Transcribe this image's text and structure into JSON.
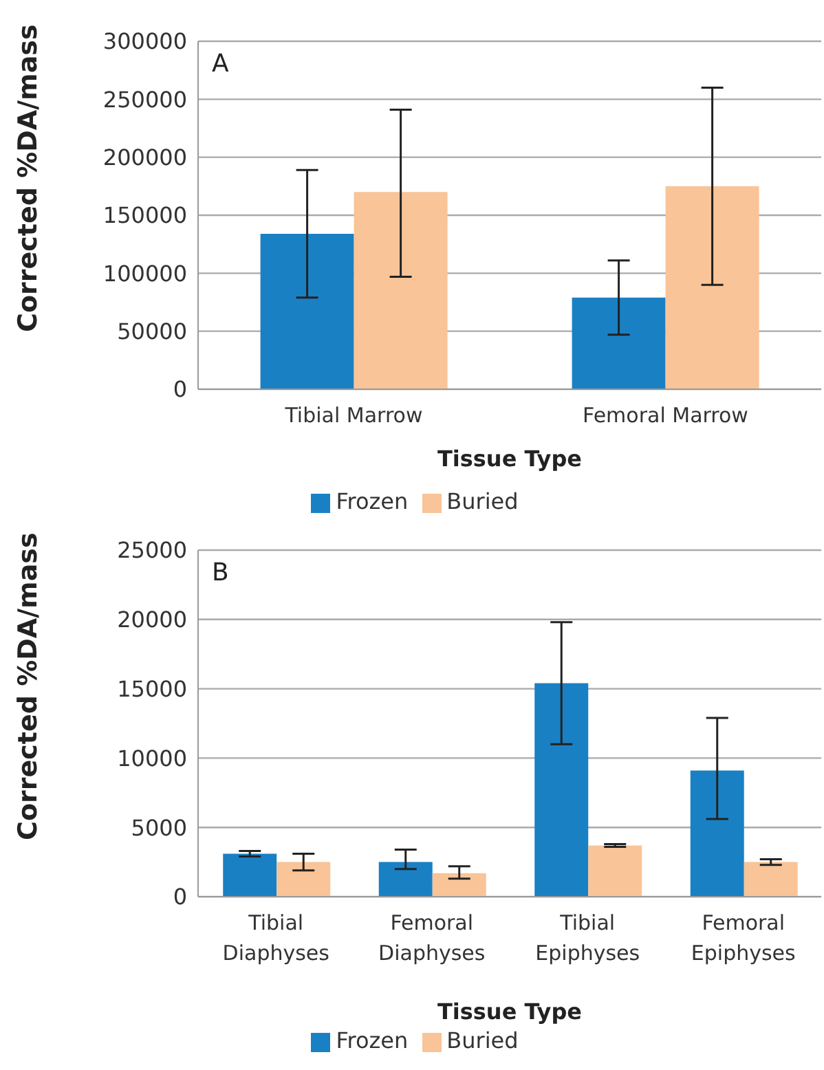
{
  "chart_data": [
    {
      "type": "bar",
      "annotations": [
        "A"
      ],
      "xlabel": "Tissue Type",
      "ylabel": "Corrected %DA/mass",
      "categories": [
        "Tibial Marrow",
        "Femoral Marrow"
      ],
      "series": [
        {
          "name": "Frozen",
          "color": "#1a80c4",
          "values": [
            134000,
            79000
          ],
          "errors": [
            [
              79000,
              189000
            ],
            [
              47000,
              111000
            ]
          ]
        },
        {
          "name": "Buried",
          "color": "#f9c498",
          "values": [
            170000,
            175000
          ],
          "errors": [
            [
              97000,
              241000
            ],
            [
              90000,
              260000
            ]
          ]
        }
      ],
      "ylim": [
        0,
        300000
      ],
      "yticks": [
        0,
        50000,
        100000,
        150000,
        200000,
        250000,
        300000
      ],
      "grid": "y",
      "legend": "bottom"
    },
    {
      "type": "bar",
      "annotations": [
        "B"
      ],
      "xlabel": "Tissue Type",
      "ylabel": "Corrected %DA/mass",
      "categories": [
        "Tibial Diaphyses",
        "Femoral Diaphyses",
        "Tibial Epiphyses",
        "Femoral Epiphyses"
      ],
      "series": [
        {
          "name": "Frozen",
          "color": "#1a80c4",
          "values": [
            3100,
            2500,
            15400,
            9100
          ],
          "errors": [
            [
              2900,
              3300
            ],
            [
              2000,
              3400
            ],
            [
              11000,
              19800
            ],
            [
              5600,
              12900
            ]
          ]
        },
        {
          "name": "Buried",
          "color": "#f9c498",
          "values": [
            2500,
            1700,
            3700,
            2500
          ],
          "errors": [
            [
              1900,
              3100
            ],
            [
              1300,
              2200
            ],
            [
              3600,
              3800
            ],
            [
              2300,
              2700
            ]
          ]
        }
      ],
      "ylim": [
        0,
        25000
      ],
      "yticks": [
        0,
        5000,
        10000,
        15000,
        20000,
        25000
      ],
      "grid": "y",
      "legend": "bottom"
    }
  ]
}
